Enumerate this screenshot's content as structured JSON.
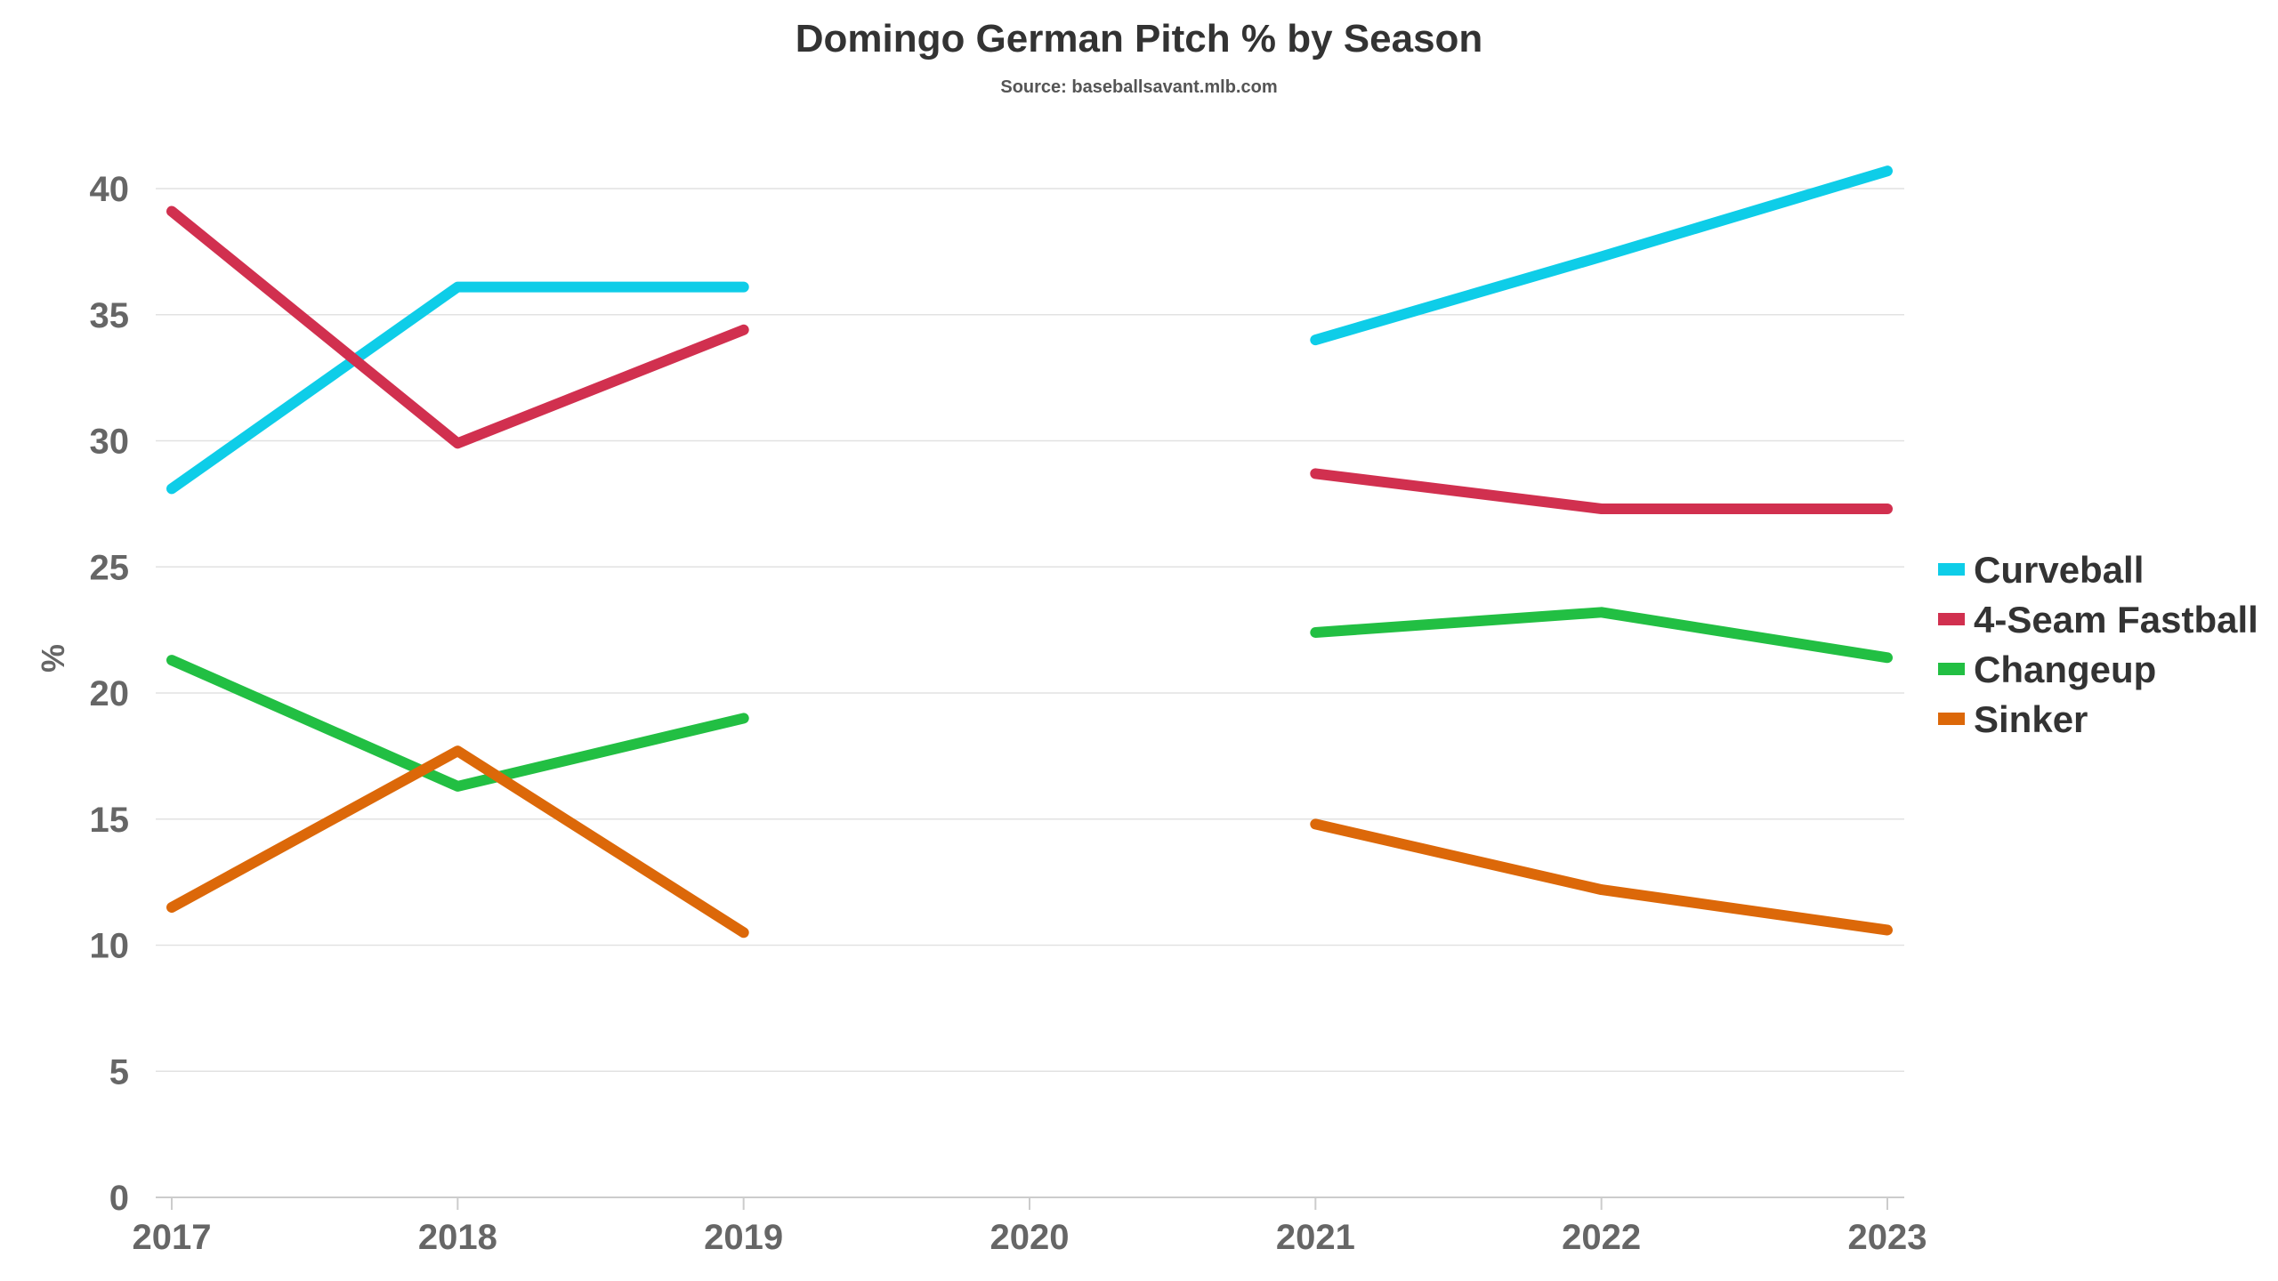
{
  "chart_data": {
    "type": "line",
    "title": "Domingo German Pitch % by Season",
    "subtitle": "Source: baseballsavant.mlb.com",
    "xlabel": "",
    "ylabel": "%",
    "x": [
      2017,
      2018,
      2019,
      2020,
      2021,
      2022,
      2023
    ],
    "x_tick_labels": [
      "2017",
      "2018",
      "2019",
      "2020",
      "2021",
      "2022",
      "2023"
    ],
    "ylim": [
      0,
      40
    ],
    "y_ticks": [
      0,
      5,
      10,
      15,
      20,
      25,
      30,
      35,
      40
    ],
    "grid": true,
    "legend_position": "right",
    "series": [
      {
        "name": "Curveball",
        "color": "#0ecde8",
        "values": [
          28.1,
          36.1,
          36.1,
          null,
          34.0,
          37.3,
          40.7
        ]
      },
      {
        "name": "4-Seam Fastball",
        "color": "#d1304f",
        "values": [
          39.1,
          29.9,
          34.4,
          null,
          28.7,
          27.3,
          27.3
        ]
      },
      {
        "name": "Changeup",
        "color": "#22bf43",
        "values": [
          21.3,
          16.3,
          19.0,
          null,
          22.4,
          23.2,
          21.4
        ]
      },
      {
        "name": "Sinker",
        "color": "#dc6809",
        "values": [
          11.5,
          17.7,
          10.5,
          null,
          14.8,
          12.2,
          10.6
        ]
      }
    ]
  }
}
